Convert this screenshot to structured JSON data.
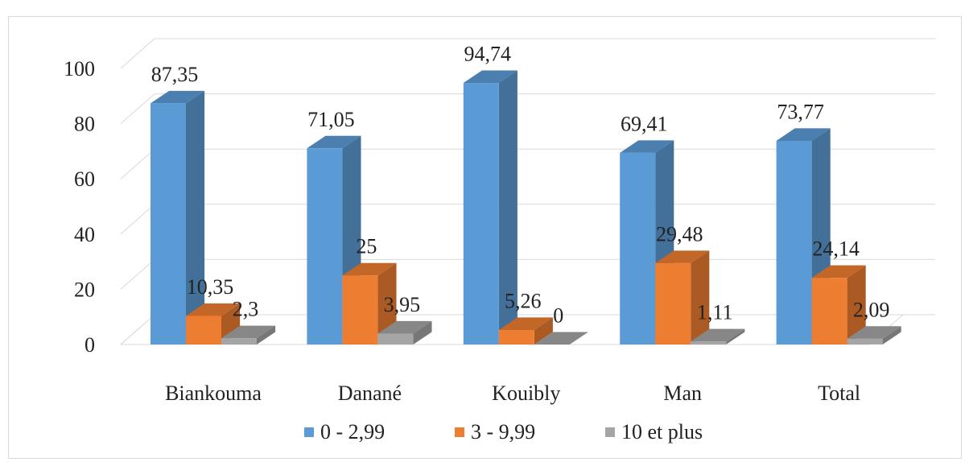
{
  "chart_data": {
    "type": "bar",
    "title": "",
    "xlabel": "",
    "ylabel": "",
    "categories": [
      "Biankouma",
      "Danané",
      "Kouibly",
      "Man",
      "Total"
    ],
    "series": [
      {
        "name": "0 - 2,99",
        "color": "#5B9BD5",
        "values": [
          87.35,
          71.05,
          94.74,
          69.41,
          73.77
        ],
        "labels": [
          "87,35",
          "71,05",
          "94,74",
          "69,41",
          "73,77"
        ]
      },
      {
        "name": "3 - 9,99",
        "color": "#ED7D31",
        "values": [
          10.35,
          25,
          5.26,
          29.48,
          24.14
        ],
        "labels": [
          "10,35",
          "25",
          "5,26",
          "29,48",
          "24,14"
        ]
      },
      {
        "name": "10 et plus",
        "color": "#A5A5A5",
        "values": [
          2.3,
          3.95,
          0,
          1.11,
          2.09
        ],
        "labels": [
          "2,3",
          "3,95",
          "0",
          "1,11",
          "2,09"
        ]
      }
    ],
    "ylim": [
      0,
      100
    ],
    "yticks": [
      "0",
      "20",
      "40",
      "60",
      "80",
      "100"
    ],
    "grid": true,
    "legend_position": "bottom",
    "style": "3d-clustered-column"
  }
}
